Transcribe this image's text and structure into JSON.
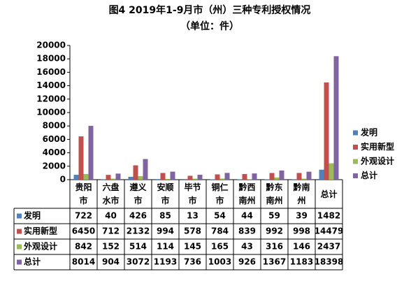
{
  "chart_data": {
    "type": "bar",
    "title": "图4 2019年1-9月市（州）三种专利授权情况",
    "subtitle": "（单位：件）",
    "categories": [
      "贵阳市",
      "六盘水市",
      "遵义市",
      "安顺市",
      "毕节市",
      "铜仁市",
      "黔西南州",
      "黔东南州",
      "黔南州",
      "总计"
    ],
    "series": [
      {
        "name": "发明",
        "color": "#4f81bd",
        "values": [
          722,
          40,
          426,
          85,
          13,
          54,
          44,
          59,
          39,
          1482
        ]
      },
      {
        "name": "实用新型",
        "color": "#c0504d",
        "values": [
          6450,
          712,
          2132,
          994,
          578,
          784,
          839,
          992,
          998,
          14479
        ]
      },
      {
        "name": "外观设计",
        "color": "#9bbb59",
        "values": [
          842,
          152,
          514,
          114,
          145,
          165,
          43,
          316,
          146,
          2437
        ]
      },
      {
        "name": "总计",
        "color": "#8064a2",
        "values": [
          8014,
          904,
          3072,
          1193,
          736,
          1003,
          926,
          1367,
          1183,
          18398
        ]
      }
    ],
    "ylim": [
      0,
      20000
    ],
    "yticks": [
      0,
      2000,
      4000,
      6000,
      8000,
      10000,
      12000,
      14000,
      16000,
      18000,
      20000
    ],
    "grid": false,
    "legend": "right",
    "data_table": true
  }
}
